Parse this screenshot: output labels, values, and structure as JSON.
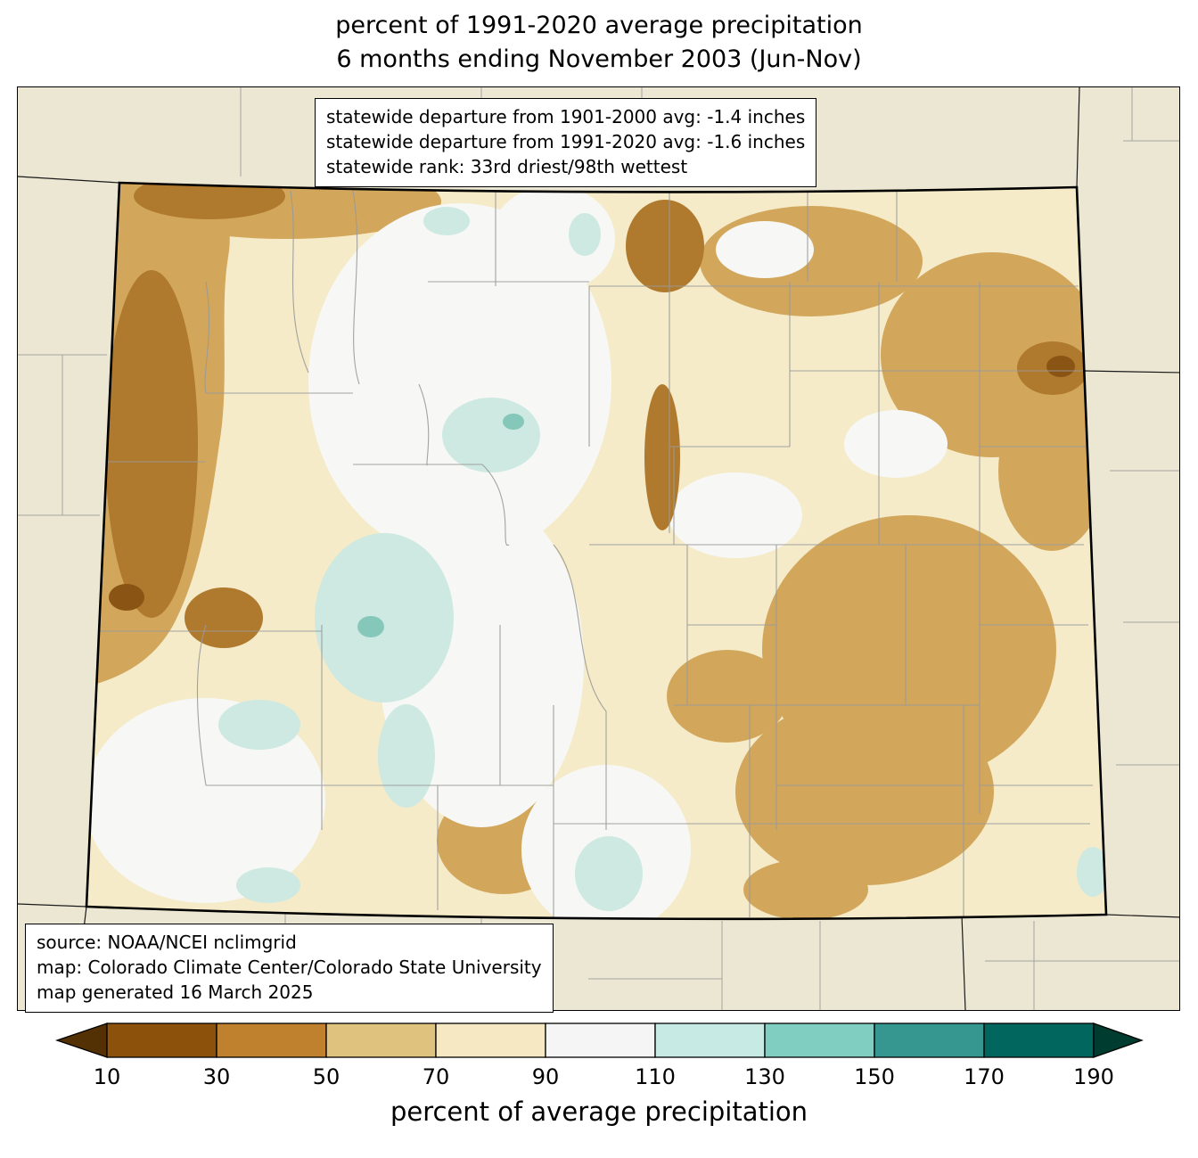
{
  "title": {
    "line1": "percent of 1991-2020 average precipitation",
    "line2": "6 months ending November 2003 (Jun-Nov)"
  },
  "stats_box": {
    "line1": "statewide departure from 1901-2000 avg: -1.4 inches",
    "line2": "statewide departure from 1991-2020 avg: -1.6 inches",
    "line3": "statewide rank: 33rd driest/98th wettest"
  },
  "source_box": {
    "line1": "source: NOAA/NCEI nclimgrid",
    "line2": "map: Colorado Climate Center/Colorado State University",
    "line3": "map generated 16 March 2025"
  },
  "colorbar": {
    "label": "percent of average precipitation",
    "ticks": [
      "10",
      "30",
      "50",
      "70",
      "90",
      "110",
      "130",
      "150",
      "170",
      "190"
    ],
    "segment_colors": [
      "#8c510a",
      "#bf812d",
      "#dfc27d",
      "#f6e8c3",
      "#f5f5f5",
      "#c7eae5",
      "#80cdc1",
      "#35978f",
      "#01665e"
    ],
    "under_color": "#543005",
    "over_color": "#003c30"
  },
  "map": {
    "region": "Colorado with county boundaries",
    "palette": {
      "outside": "#ece7d2",
      "base": "#f5ebc9",
      "white_region": "#f7f8f5",
      "tan": "#d2a75c",
      "brown": "#b07a2e",
      "dark_brown": "#8a5414",
      "teal_light": "#cde9e1",
      "teal_mid": "#85c8ba",
      "county_line": "#999999",
      "state_line": "#000000"
    }
  },
  "chart_data": {
    "type": "heatmap",
    "title": "percent of 1991-2020 average precipitation",
    "subtitle": "6 months ending November 2003 (Jun-Nov)",
    "region": "Colorado (state map with county boundaries)",
    "colorbar_label": "percent of average precipitation",
    "colorbar_ticks": [
      10,
      30,
      50,
      70,
      90,
      110,
      130,
      150,
      170,
      190
    ],
    "colorbar_bin_colors": [
      "#8c510a",
      "#bf812d",
      "#dfc27d",
      "#f6e8c3",
      "#f5f5f5",
      "#c7eae5",
      "#80cdc1",
      "#35978f",
      "#01665e"
    ],
    "colorbar_under_color": "#543005",
    "colorbar_over_color": "#003c30",
    "stats": {
      "departure_from_1901_2000_avg_inches": -1.4,
      "departure_from_1991_2020_avg_inches": -1.6,
      "statewide_rank": "33rd driest/98th wettest"
    },
    "source": "NOAA/NCEI nclimgrid",
    "map_credit": "Colorado Climate Center/Colorado State University",
    "map_generated": "16 March 2025",
    "value_pattern_summary": "Most of Colorado 50-90% of average (tan/brown = drier), driest pockets (10-50%) on far west edge, northeast corner and east-central plains; near-normal white band through central mountains; scattered 110-150% teal pockets in central and south-central mountain valleys"
  }
}
